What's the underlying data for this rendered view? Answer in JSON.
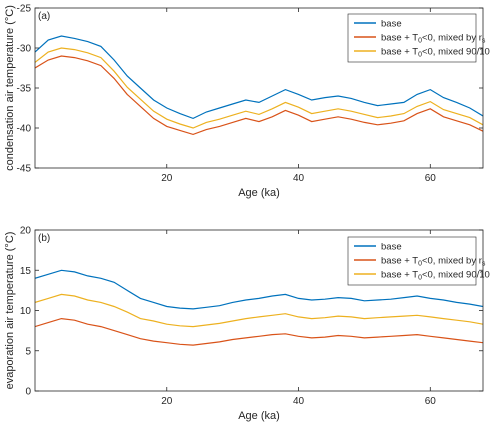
{
  "chart_data": [
    {
      "type": "line",
      "panel_label": "(a)",
      "xlabel": "Age (ka)",
      "ylabel": "condensation air temperature (°C)",
      "xlim": [
        0,
        68
      ],
      "ylim": [
        -45,
        -25
      ],
      "xticks": [
        20,
        40,
        60
      ],
      "yticks": [
        -45,
        -40,
        -35,
        -30,
        -25
      ],
      "grid": false,
      "legend_position": "top-right",
      "series": [
        {
          "name": "base",
          "color": "#0072BD",
          "x": [
            0,
            2,
            4,
            6,
            8,
            10,
            12,
            14,
            16,
            18,
            20,
            22,
            24,
            26,
            28,
            30,
            32,
            34,
            36,
            38,
            40,
            42,
            44,
            46,
            48,
            50,
            52,
            54,
            56,
            58,
            60,
            62,
            64,
            66,
            68
          ],
          "y": [
            -30.5,
            -29,
            -28.5,
            -28.8,
            -29.2,
            -29.8,
            -31.5,
            -33.5,
            -35,
            -36.5,
            -37.5,
            -38.2,
            -38.8,
            -38,
            -37.5,
            -37,
            -36.5,
            -36.8,
            -36,
            -35.2,
            -35.8,
            -36.5,
            -36.2,
            -36,
            -36.3,
            -36.8,
            -37.2,
            -37,
            -36.8,
            -35.8,
            -35.2,
            -36.2,
            -36.8,
            -37.5,
            -38.5
          ]
        },
        {
          "name": "base + T0<0, mixed by rs",
          "label_parts": {
            "pre": "base + T",
            "sub1": "0",
            "mid": "<0, mixed by r",
            "sub2": "s"
          },
          "color": "#D95319",
          "x": [
            0,
            2,
            4,
            6,
            8,
            10,
            12,
            14,
            16,
            18,
            20,
            22,
            24,
            26,
            28,
            30,
            32,
            34,
            36,
            38,
            40,
            42,
            44,
            46,
            48,
            50,
            52,
            54,
            56,
            58,
            60,
            62,
            64,
            66,
            68
          ],
          "y": [
            -32.5,
            -31.5,
            -31,
            -31.2,
            -31.6,
            -32.2,
            -33.8,
            -35.8,
            -37.3,
            -38.8,
            -39.8,
            -40.3,
            -40.8,
            -40.2,
            -39.8,
            -39.3,
            -38.8,
            -39.2,
            -38.6,
            -37.8,
            -38.4,
            -39.2,
            -38.9,
            -38.6,
            -38.9,
            -39.3,
            -39.6,
            -39.4,
            -39.1,
            -38.2,
            -37.6,
            -38.6,
            -39.1,
            -39.6,
            -40.4
          ]
        },
        {
          "name": "base + T0<0, mixed 90/10",
          "label_parts": {
            "pre": "base + T",
            "sub1": "0",
            "mid": "<0, mixed 90/10"
          },
          "color": "#EDB120",
          "x": [
            0,
            2,
            4,
            6,
            8,
            10,
            12,
            14,
            16,
            18,
            20,
            22,
            24,
            26,
            28,
            30,
            32,
            34,
            36,
            38,
            40,
            42,
            44,
            46,
            48,
            50,
            52,
            54,
            56,
            58,
            60,
            62,
            64,
            66,
            68
          ],
          "y": [
            -31.8,
            -30.5,
            -30,
            -30.2,
            -30.6,
            -31.2,
            -32.9,
            -34.9,
            -36.4,
            -37.9,
            -38.9,
            -39.5,
            -40,
            -39.3,
            -38.9,
            -38.4,
            -37.9,
            -38.3,
            -37.6,
            -36.8,
            -37.4,
            -38.2,
            -37.9,
            -37.6,
            -37.9,
            -38.3,
            -38.7,
            -38.5,
            -38.2,
            -37.3,
            -36.7,
            -37.7,
            -38.2,
            -38.7,
            -39.6
          ]
        }
      ]
    },
    {
      "type": "line",
      "panel_label": "(b)",
      "xlabel": "Age (ka)",
      "ylabel": "evaporation air temperature (°C)",
      "xlim": [
        0,
        68
      ],
      "ylim": [
        0,
        20
      ],
      "xticks": [
        20,
        40,
        60
      ],
      "yticks": [
        0,
        5,
        10,
        15,
        20
      ],
      "grid": false,
      "legend_position": "top-right",
      "series": [
        {
          "name": "base",
          "color": "#0072BD",
          "x": [
            0,
            2,
            4,
            6,
            8,
            10,
            12,
            14,
            16,
            18,
            20,
            22,
            24,
            26,
            28,
            30,
            32,
            34,
            36,
            38,
            40,
            42,
            44,
            46,
            48,
            50,
            52,
            54,
            56,
            58,
            60,
            62,
            64,
            66,
            68
          ],
          "y": [
            14,
            14.5,
            15,
            14.8,
            14.3,
            14,
            13.5,
            12.5,
            11.5,
            11,
            10.5,
            10.3,
            10.2,
            10.4,
            10.6,
            11,
            11.3,
            11.5,
            11.8,
            12,
            11.5,
            11.3,
            11.4,
            11.6,
            11.5,
            11.2,
            11.3,
            11.4,
            11.6,
            11.8,
            11.5,
            11.3,
            11,
            10.8,
            10.5
          ]
        },
        {
          "name": "base + T0<0, mixed by rs",
          "label_parts": {
            "pre": "base + T",
            "sub1": "0",
            "mid": "<0, mixed by r",
            "sub2": "s"
          },
          "color": "#D95319",
          "x": [
            0,
            2,
            4,
            6,
            8,
            10,
            12,
            14,
            16,
            18,
            20,
            22,
            24,
            26,
            28,
            30,
            32,
            34,
            36,
            38,
            40,
            42,
            44,
            46,
            48,
            50,
            52,
            54,
            56,
            58,
            60,
            62,
            64,
            66,
            68
          ],
          "y": [
            8,
            8.5,
            9,
            8.8,
            8.3,
            8,
            7.5,
            7,
            6.5,
            6.2,
            6,
            5.8,
            5.7,
            5.9,
            6.1,
            6.4,
            6.6,
            6.8,
            7,
            7.1,
            6.8,
            6.6,
            6.7,
            6.9,
            6.8,
            6.6,
            6.7,
            6.8,
            6.9,
            7,
            6.8,
            6.6,
            6.4,
            6.2,
            6
          ]
        },
        {
          "name": "base + T0<0, mixed 90/10",
          "label_parts": {
            "pre": "base + T",
            "sub1": "0",
            "mid": "<0, mixed 90/10"
          },
          "color": "#EDB120",
          "x": [
            0,
            2,
            4,
            6,
            8,
            10,
            12,
            14,
            16,
            18,
            20,
            22,
            24,
            26,
            28,
            30,
            32,
            34,
            36,
            38,
            40,
            42,
            44,
            46,
            48,
            50,
            52,
            54,
            56,
            58,
            60,
            62,
            64,
            66,
            68
          ],
          "y": [
            11,
            11.5,
            12,
            11.8,
            11.3,
            11,
            10.5,
            9.8,
            9,
            8.7,
            8.3,
            8.1,
            8,
            8.2,
            8.4,
            8.7,
            9,
            9.2,
            9.4,
            9.6,
            9.2,
            9,
            9.1,
            9.3,
            9.2,
            9,
            9.1,
            9.2,
            9.3,
            9.4,
            9.2,
            9,
            8.8,
            8.6,
            8.3
          ]
        }
      ]
    }
  ]
}
